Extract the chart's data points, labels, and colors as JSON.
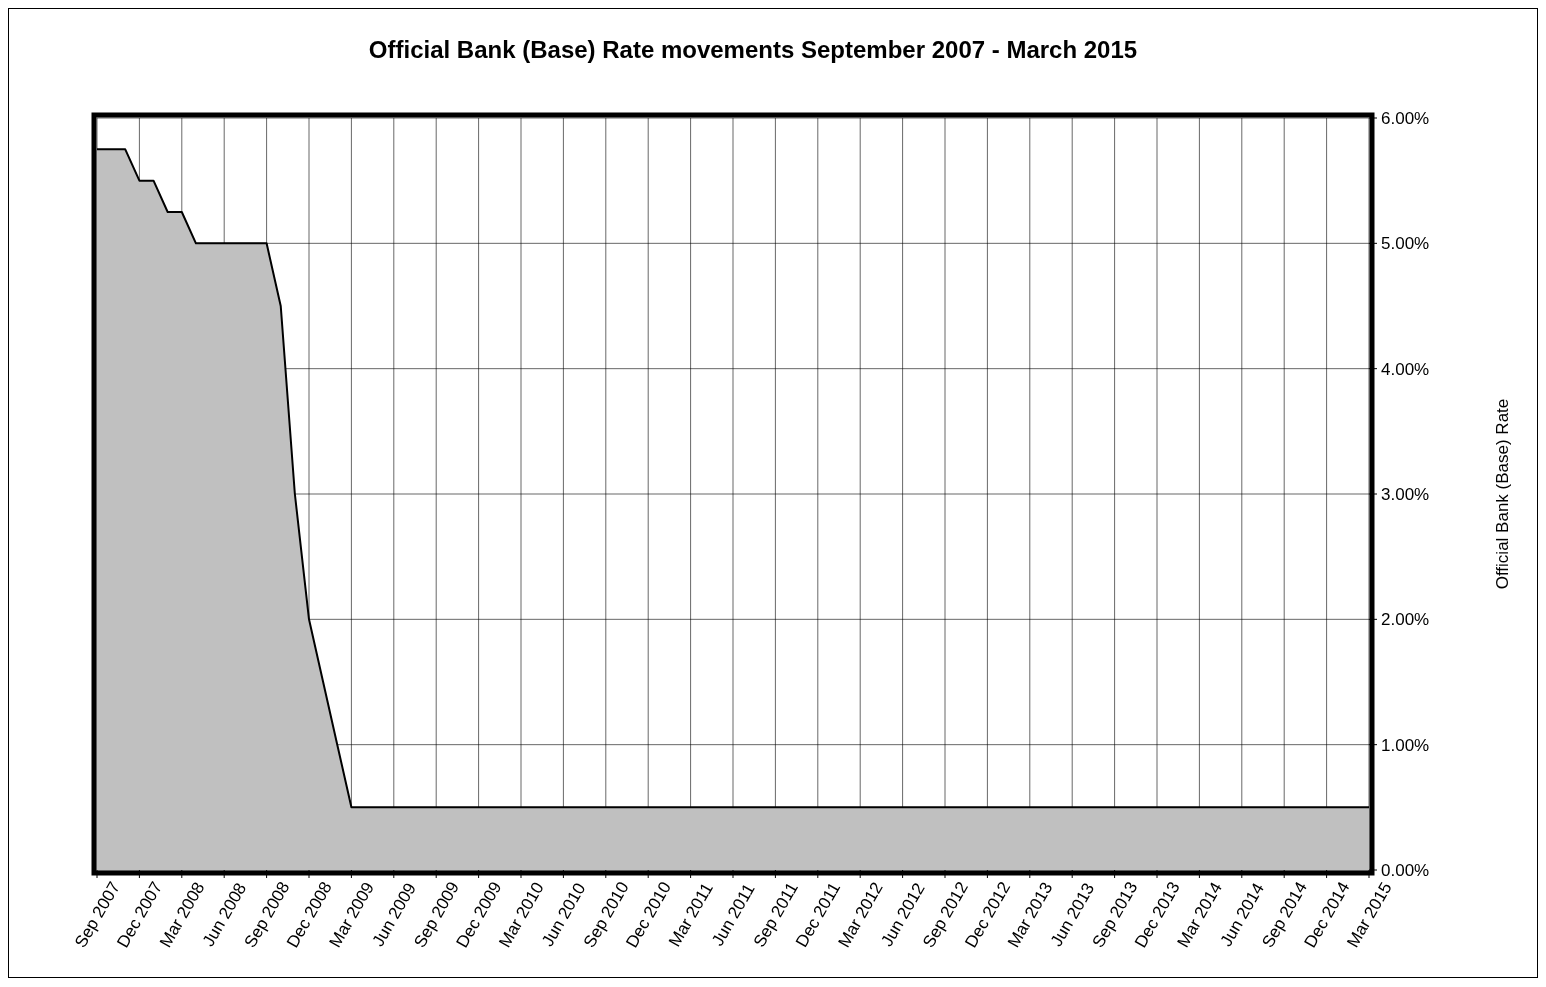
{
  "chart_data": {
    "type": "area",
    "title": "Official Bank (Base) Rate movements September 2007 - March 2015",
    "ylabel": "Official Bank (Base) Rate",
    "categories": [
      "Sep 2007",
      null,
      null,
      "Dec 2007",
      null,
      null,
      "Mar 2008",
      null,
      null,
      "Jun 2008",
      null,
      null,
      "Sep 2008",
      null,
      null,
      "Dec 2008",
      null,
      null,
      "Mar 2009",
      null,
      null,
      "Jun 2009",
      null,
      null,
      "Sep 2009",
      null,
      null,
      "Dec 2009",
      null,
      null,
      "Mar 2010",
      null,
      null,
      "Jun 2010",
      null,
      null,
      "Sep 2010",
      null,
      null,
      "Dec 2010",
      null,
      null,
      "Mar 2011",
      null,
      null,
      "Jun 2011",
      null,
      null,
      "Sep 2011",
      null,
      null,
      "Dec 2011",
      null,
      null,
      "Mar 2012",
      null,
      null,
      "Jun 2012",
      null,
      null,
      "Sep 2012",
      null,
      null,
      "Dec 2012",
      null,
      null,
      "Mar 2013",
      null,
      null,
      "Jun 2013",
      null,
      null,
      "Sep 2013",
      null,
      null,
      "Dec 2013",
      null,
      null,
      "Mar 2014",
      null,
      null,
      "Jun 2014",
      null,
      null,
      "Sep 2014",
      null,
      null,
      "Dec 2014",
      null,
      null,
      "Mar 2015"
    ],
    "series": [
      {
        "color": "#c0c0c0",
        "values": [
          5.75,
          5.75,
          5.75,
          5.5,
          5.5,
          5.25,
          5.25,
          5.0,
          5.0,
          5.0,
          5.0,
          5.0,
          5.0,
          4.5,
          3.0,
          2.0,
          1.5,
          1.0,
          0.5,
          0.5,
          0.5,
          0.5,
          0.5,
          0.5,
          0.5,
          0.5,
          0.5,
          0.5,
          0.5,
          0.5,
          0.5,
          0.5,
          0.5,
          0.5,
          0.5,
          0.5,
          0.5,
          0.5,
          0.5,
          0.5,
          0.5,
          0.5,
          0.5,
          0.5,
          0.5,
          0.5,
          0.5,
          0.5,
          0.5,
          0.5,
          0.5,
          0.5,
          0.5,
          0.5,
          0.5,
          0.5,
          0.5,
          0.5,
          0.5,
          0.5,
          0.5,
          0.5,
          0.5,
          0.5,
          0.5,
          0.5,
          0.5,
          0.5,
          0.5,
          0.5,
          0.5,
          0.5,
          0.5,
          0.5,
          0.5,
          0.5,
          0.5,
          0.5,
          0.5,
          0.5,
          0.5,
          0.5,
          0.5,
          0.5,
          0.5,
          0.5,
          0.5,
          0.5,
          0.5,
          0.5,
          0.5
        ]
      }
    ],
    "ylim": [
      0,
      6
    ],
    "yticks": [
      {
        "value": 0,
        "label": "0.00%"
      },
      {
        "value": 1,
        "label": "1.00%"
      },
      {
        "value": 2,
        "label": "2.00%"
      },
      {
        "value": 3,
        "label": "3.00%"
      },
      {
        "value": 4,
        "label": "4.00%"
      },
      {
        "value": 5,
        "label": "5.00%"
      },
      {
        "value": 6,
        "label": "6.00%"
      }
    ],
    "grid": true,
    "marker": "none",
    "line_style": "solid"
  }
}
